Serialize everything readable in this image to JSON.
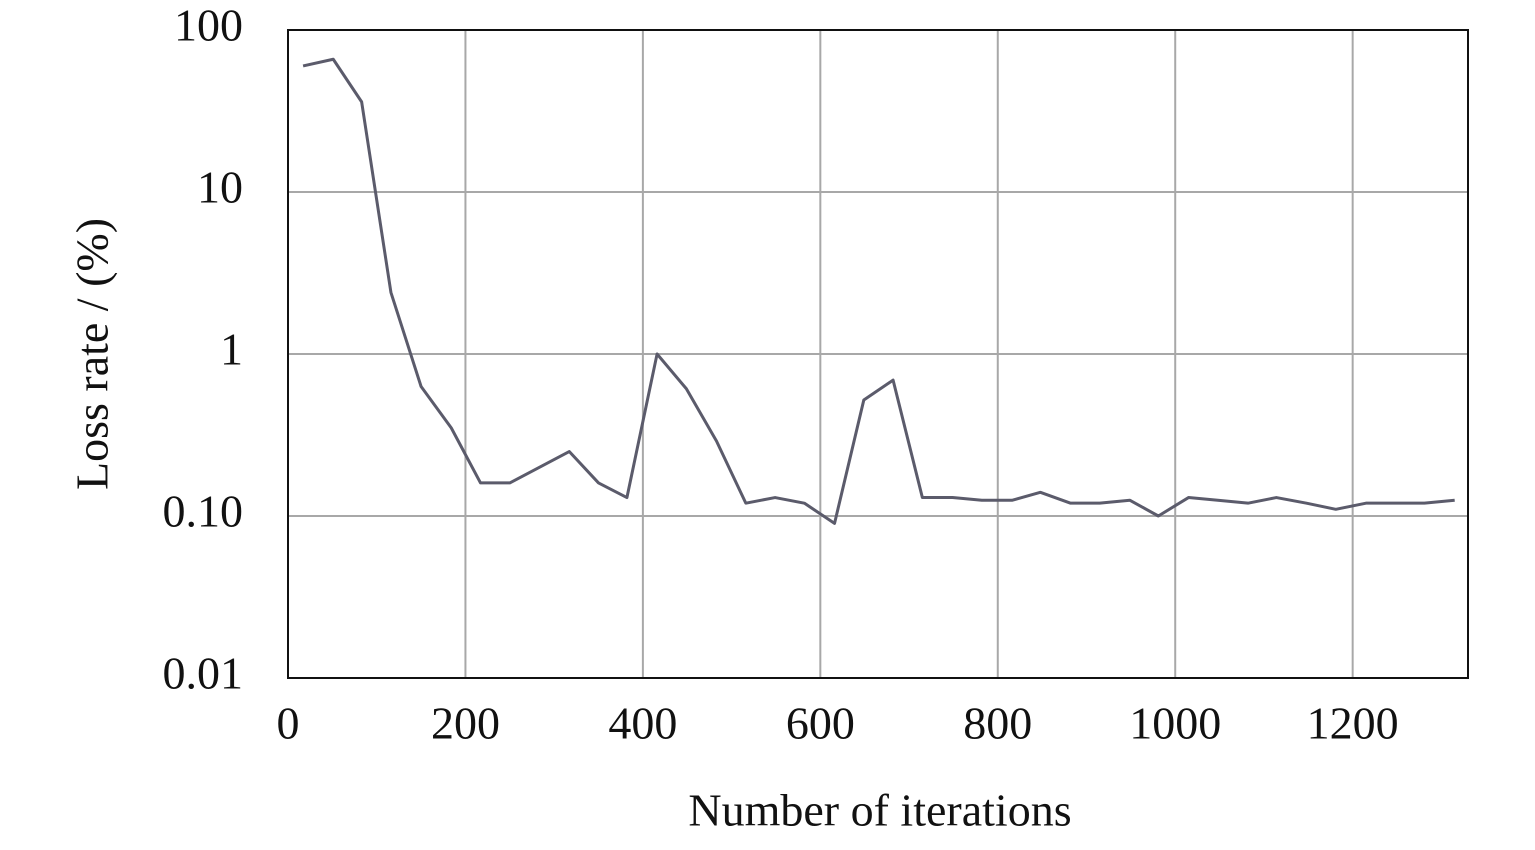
{
  "chart_data": {
    "type": "line",
    "x_label": "Number of iterations",
    "y_label": "Loss rate / (%)",
    "y_log": true,
    "grid": true,
    "xlim": [
      0,
      1330
    ],
    "ylim": [
      0.01,
      100
    ],
    "xticks": [
      0,
      200,
      400,
      600,
      800,
      1000,
      1200
    ],
    "yticks": [
      0.01,
      {
        "value": 0.1,
        "label": "0.10"
      },
      1,
      10,
      100
    ],
    "x": [
      17,
      51,
      83,
      116,
      150,
      184,
      217,
      250,
      317,
      350,
      382,
      416,
      449,
      483,
      516,
      549,
      582,
      616,
      649,
      682,
      715,
      749,
      782,
      816,
      848,
      882,
      915,
      949,
      981,
      1015,
      1048,
      1082,
      1114,
      1148,
      1181,
      1215,
      1248,
      1281,
      1315
    ],
    "series": [
      {
        "color": "#5b5b6b",
        "values": [
          60,
          66,
          36,
          2.4,
          0.63,
          0.35,
          0.16,
          0.16,
          0.25,
          0.16,
          0.13,
          1.0,
          0.61,
          0.29,
          0.12,
          0.13,
          0.12,
          0.09,
          0.52,
          0.69,
          0.13,
          0.13,
          0.125,
          0.125,
          0.14,
          0.12,
          0.12,
          0.125,
          0.1,
          0.13,
          0.125,
          0.12,
          0.13,
          0.12,
          0.11,
          0.12,
          0.12,
          0.12,
          0.125
        ]
      }
    ]
  }
}
